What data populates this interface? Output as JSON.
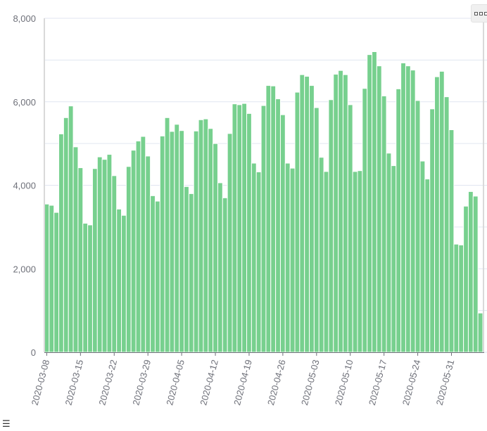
{
  "chart_data": {
    "type": "bar",
    "title": "",
    "xlabel": "",
    "ylabel": "",
    "ylim": [
      0,
      8000
    ],
    "yticks": [
      "0",
      "2,000",
      "4,000",
      "6,000",
      "8,000"
    ],
    "bar_color": "#77d08e",
    "bar_edge_color": "#ffffff",
    "grid": true,
    "start_date": "2020-03-08",
    "xtick_labels": [
      "2020-03-08",
      "2020-03-15",
      "2020-03-22",
      "2020-03-29",
      "2020-04-05",
      "2020-04-12",
      "2020-04-19",
      "2020-04-26",
      "2020-05-03",
      "2020-05-10",
      "2020-05-17",
      "2020-05-24",
      "2020-05-31"
    ],
    "values": [
      3550,
      3520,
      3350,
      5230,
      5620,
      5900,
      4920,
      4420,
      3090,
      3050,
      4400,
      4680,
      4620,
      4740,
      4230,
      3430,
      3280,
      4450,
      4840,
      5060,
      5170,
      4700,
      3750,
      3620,
      5180,
      5620,
      5290,
      5460,
      5310,
      3970,
      3800,
      5300,
      5570,
      5590,
      5360,
      5000,
      4060,
      3700,
      5240,
      5950,
      5930,
      5960,
      5720,
      4530,
      4320,
      5910,
      6390,
      6380,
      6070,
      5690,
      4530,
      4410,
      6230,
      6650,
      6610,
      6390,
      5860,
      4670,
      4330,
      6050,
      6660,
      6750,
      6650,
      5930,
      4330,
      4350,
      6320,
      7130,
      7200,
      6860,
      6140,
      4770,
      4470,
      6310,
      6930,
      6860,
      6760,
      6030,
      4580,
      4150,
      5830,
      6600,
      6730,
      6120,
      5330,
      2590,
      2570,
      3500,
      3850,
      3740,
      940
    ]
  },
  "icons": {
    "toolbox": "more-options-icon",
    "legend_toggle": "list-icon"
  }
}
